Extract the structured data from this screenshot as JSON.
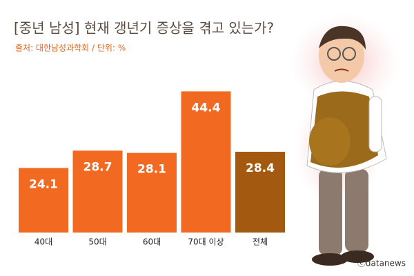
{
  "chart_data": {
    "type": "bar",
    "title": "[중년 남성] 현재 갱년기 증상을 겪고 있는가?",
    "subtitle": "출처: 대한남성과학회 / 단위: %",
    "credit": "ⓒdatanews",
    "categories": [
      "40대",
      "50대",
      "60대",
      "70대 이상",
      "전체"
    ],
    "values": [
      24.1,
      28.7,
      28.1,
      44.4,
      28.4
    ],
    "colors": [
      "#f26a21",
      "#f26a21",
      "#f26a21",
      "#f26a21",
      "#a35a10"
    ]
  }
}
